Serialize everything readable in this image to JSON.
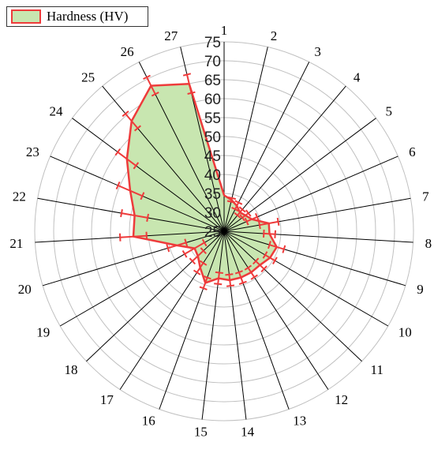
{
  "chart_data": {
    "type": "radar",
    "categories": [
      "1",
      "2",
      "3",
      "4",
      "5",
      "6",
      "7",
      "8",
      "9",
      "10",
      "11",
      "12",
      "13",
      "14",
      "15",
      "16",
      "17",
      "18",
      "19",
      "20",
      "21",
      "22",
      "23",
      "24",
      "25",
      "26",
      "27"
    ],
    "r_ticks": [
      "25",
      "30",
      "35",
      "40",
      "45",
      "50",
      "55",
      "60",
      "65",
      "70",
      "75"
    ],
    "rlim": [
      25,
      75
    ],
    "series": [
      {
        "name": "Hardness (HV)",
        "values": [
          34.5,
          33.5,
          32.5,
          31.5,
          32,
          33,
          37,
          37,
          39.5,
          39,
          38,
          38,
          38,
          38,
          37.5,
          39.5,
          36.5,
          34.5,
          34,
          38,
          49,
          49,
          52,
          57,
          63,
          68,
          65
        ],
        "error": [
          0,
          0.5,
          1,
          1,
          1,
          1.5,
          2.5,
          1.5,
          2,
          1.5,
          1.5,
          1.5,
          1.5,
          1.5,
          1.5,
          1.5,
          1.5,
          2,
          3,
          2.5,
          3.5,
          3.5,
          3.5,
          3,
          2.5,
          2.5,
          2.5
        ]
      }
    ],
    "colors": {
      "line": "#ee3b3b",
      "fill": "#c8e6b0",
      "spoke": "#000000",
      "grid": "#c0c0c0"
    },
    "grid": true,
    "legend_position": "top-left"
  }
}
